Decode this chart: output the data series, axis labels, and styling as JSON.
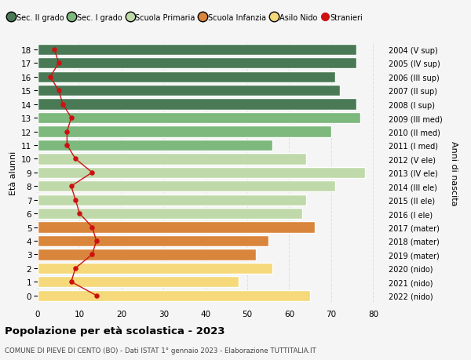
{
  "ages": [
    18,
    17,
    16,
    15,
    14,
    13,
    12,
    11,
    10,
    9,
    8,
    7,
    6,
    5,
    4,
    3,
    2,
    1,
    0
  ],
  "years": [
    "2004 (V sup)",
    "2005 (IV sup)",
    "2006 (III sup)",
    "2007 (II sup)",
    "2008 (I sup)",
    "2009 (III med)",
    "2010 (II med)",
    "2011 (I med)",
    "2012 (V ele)",
    "2013 (IV ele)",
    "2014 (III ele)",
    "2015 (II ele)",
    "2016 (I ele)",
    "2017 (mater)",
    "2018 (mater)",
    "2019 (mater)",
    "2020 (nido)",
    "2021 (nido)",
    "2022 (nido)"
  ],
  "bar_values": [
    76,
    76,
    71,
    72,
    76,
    77,
    70,
    56,
    64,
    78,
    71,
    64,
    63,
    66,
    55,
    52,
    56,
    48,
    65
  ],
  "bar_colors": [
    "#4a7a55",
    "#4a7a55",
    "#4a7a55",
    "#4a7a55",
    "#4a7a55",
    "#7db87d",
    "#7db87d",
    "#7db87d",
    "#c0d9aa",
    "#c0d9aa",
    "#c0d9aa",
    "#c0d9aa",
    "#c0d9aa",
    "#d9853b",
    "#d9853b",
    "#d9853b",
    "#f5d97a",
    "#f5d97a",
    "#f5d97a"
  ],
  "stranieri_values": [
    4,
    5,
    3,
    5,
    6,
    8,
    7,
    7,
    9,
    13,
    8,
    9,
    10,
    13,
    14,
    13,
    9,
    8,
    14
  ],
  "title": "Popolazione per età scolastica - 2023",
  "subtitle": "COMUNE DI PIEVE DI CENTO (BO) - Dati ISTAT 1° gennaio 2023 - Elaborazione TUTTITALIA.IT",
  "ylabel_left": "Età alunni",
  "ylabel_right": "Anni di nascita",
  "xlim": [
    0,
    82
  ],
  "xticks": [
    0,
    10,
    20,
    30,
    40,
    50,
    60,
    70,
    80
  ],
  "legend_labels": [
    "Sec. II grado",
    "Sec. I grado",
    "Scuola Primaria",
    "Scuola Infanzia",
    "Asilo Nido",
    "Stranieri"
  ],
  "legend_colors": [
    "#4a7a55",
    "#7db87d",
    "#c0d9aa",
    "#d9853b",
    "#f5d97a",
    "#cc1111"
  ],
  "bg_color": "#f5f5f5",
  "grid_color": "#dddddd",
  "stranieri_color": "#cc1111",
  "bar_height": 0.82
}
